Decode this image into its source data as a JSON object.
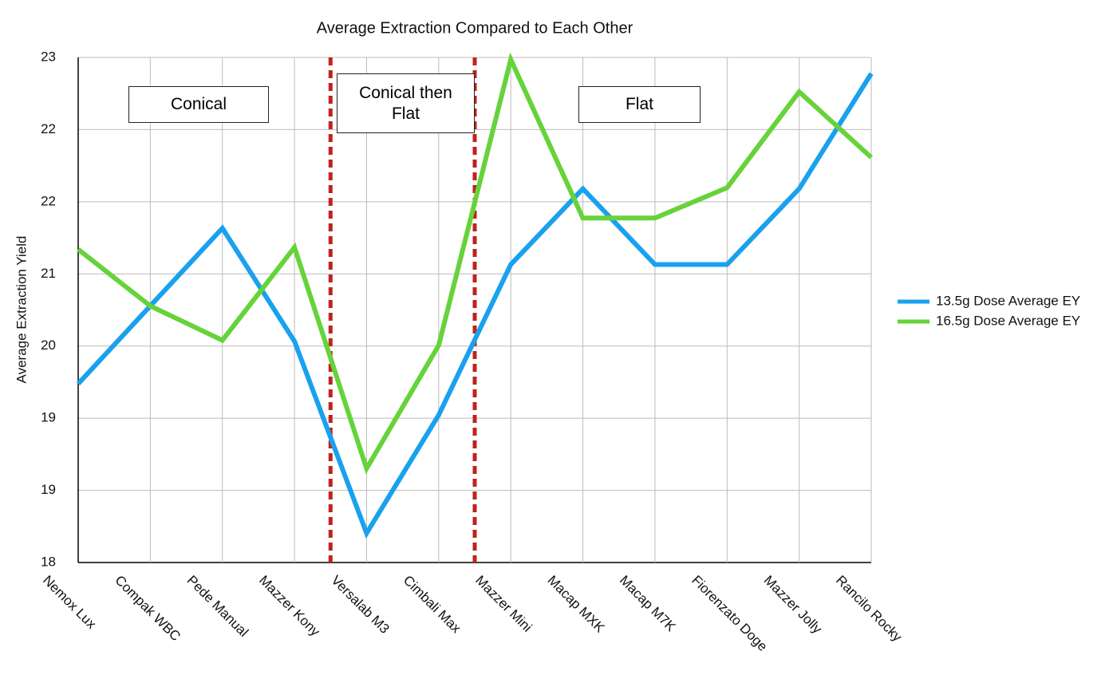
{
  "chart_data": {
    "type": "line",
    "title": "Average Extraction Compared to Each Other",
    "y_label": "Average Extraction Yield",
    "categories": [
      "Nemox Lux",
      "Compak WBC",
      "Pede Manual",
      "Mazzer Kony",
      "Versalab M3",
      "Cimbali Max",
      "Mazzer Mini",
      "Macap MXK",
      "Macap M7K",
      "Fiorenzato Doge",
      "Mazzer Jolly",
      "Rancilo Rocky"
    ],
    "series": [
      {
        "name": "13.5g Dose Average EY",
        "color": "#1aa1ee",
        "values": [
          19.77,
          20.54,
          21.31,
          20.19,
          18.29,
          19.46,
          20.95,
          21.7,
          20.95,
          20.95,
          21.7,
          22.84
        ]
      },
      {
        "name": "16.5g Dose Average EY",
        "color": "#66d33a",
        "values": [
          21.1,
          20.54,
          20.2,
          21.12,
          18.93,
          20.15,
          22.98,
          21.41,
          21.41,
          21.71,
          22.66,
          22.01
        ]
      }
    ],
    "ylim": [
      18,
      23
    ],
    "yticks": [
      18,
      {
        "value": 18.714,
        "label": "19"
      },
      {
        "value": 19.429,
        "label": "19"
      },
      {
        "value": 20.143,
        "label": "20"
      },
      {
        "value": 20.857,
        "label": "21"
      },
      {
        "value": 21.571,
        "label": "22"
      },
      {
        "value": 22.286,
        "label": "22"
      },
      23
    ],
    "grid": true,
    "legend": "right",
    "dividers": [
      3.5,
      5.5
    ],
    "regions": [
      "Conical",
      "Conical then Flat",
      "Flat"
    ]
  }
}
